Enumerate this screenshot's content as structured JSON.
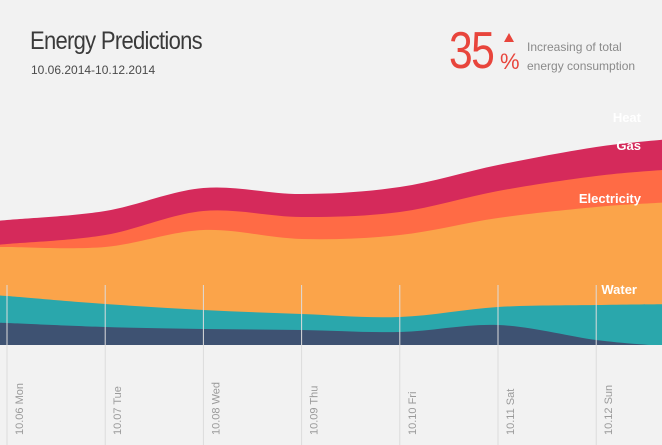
{
  "header": {
    "title": "Energy Predictions",
    "date_range": "10.06.2014-10.12.2014"
  },
  "kpi": {
    "value": "35",
    "unit": "%",
    "caption": "Increasing of total energy consumption",
    "color": "#e8453c"
  },
  "chart_data": {
    "type": "area",
    "stacked": true,
    "categories": [
      "10.06 Mon",
      "10.07 Tue",
      "10.08 Wed",
      "10.09 Thu",
      "10.10 Fri",
      "10.11 Sat",
      "10.12 Sun"
    ],
    "series": [
      {
        "name": "Water",
        "color": "#2aa7ac",
        "values": [
          27,
          23,
          19,
          16,
          15,
          18,
          35
        ]
      },
      {
        "name": "Electricity",
        "color": "#fba44a",
        "values": [
          49,
          57,
          80,
          75,
          82,
          89,
          98
        ]
      },
      {
        "name": "Gas",
        "color": "#ff6b45",
        "values": [
          3,
          12,
          19,
          22,
          23,
          27,
          31
        ]
      },
      {
        "name": "Heat",
        "color": "#d52a5b",
        "values": [
          24,
          24,
          23,
          23,
          25,
          26,
          29
        ]
      }
    ],
    "base_band": {
      "color": "#3e5272",
      "values": [
        22,
        18,
        16,
        15,
        13,
        20,
        5
      ]
    },
    "grid": true,
    "legend": "inline-right"
  }
}
